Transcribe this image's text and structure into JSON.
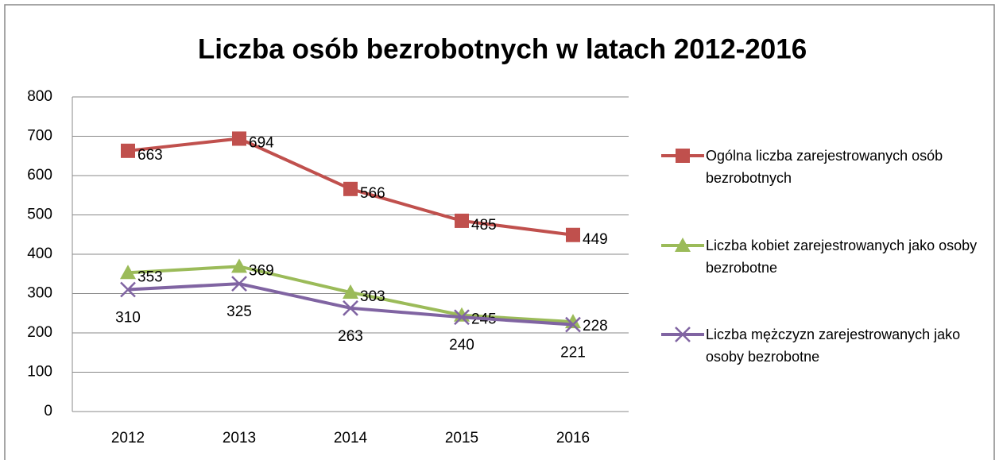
{
  "chart_data": {
    "type": "line",
    "title": "Liczba osób bezrobotnych w latach 2012-2016",
    "categories": [
      "2012",
      "2013",
      "2014",
      "2015",
      "2016"
    ],
    "series": [
      {
        "name": "Ogólna liczba zarejestrowanych osób bezrobotnych",
        "color": "#c0504d",
        "marker": "square",
        "values": [
          663,
          694,
          566,
          485,
          449
        ]
      },
      {
        "name": "Liczba kobiet zarejestrowanych jako osoby bezrobotne",
        "color": "#9bbb59",
        "marker": "triangle",
        "values": [
          353,
          369,
          303,
          245,
          228
        ]
      },
      {
        "name": "Liczba mężczyzn zarejestrowanych jako osoby bezrobotne",
        "color": "#8064a2",
        "marker": "x",
        "values": [
          310,
          325,
          263,
          240,
          221
        ]
      }
    ],
    "ylim": [
      0,
      800
    ],
    "yticks": [
      0,
      100,
      200,
      300,
      400,
      500,
      600,
      700,
      800
    ],
    "grid": true,
    "legend": "right"
  }
}
